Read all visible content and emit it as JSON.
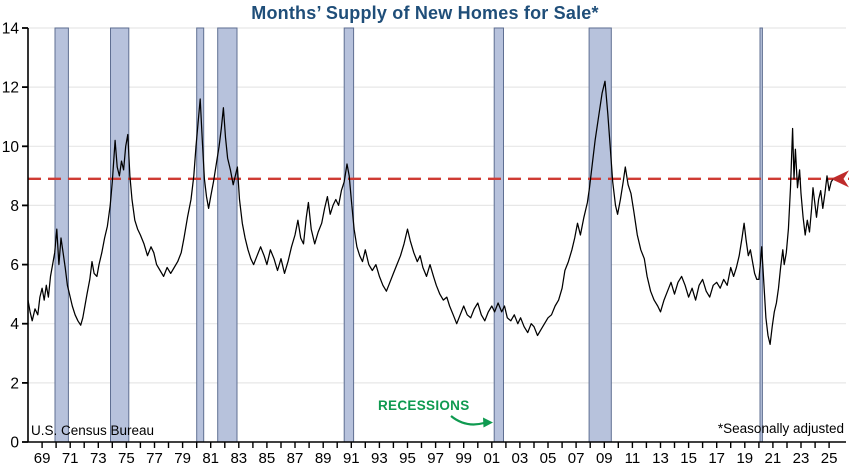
{
  "title": "Months’ Supply of New Homes for Sale*",
  "source_note": "U.S. Census Bureau",
  "footnote": "*Seasonally adjusted",
  "annotations": {
    "recessions_label": "RECESSIONS"
  },
  "colors": {
    "title": "#1F4E79",
    "line": "#000000",
    "grid": "#E7E7E7",
    "axis": "#000000",
    "tick_label": "#000000",
    "recession_fill": "#B7C2DC",
    "recession_border": "#5F6F92",
    "dashed_line": "#CF3B34",
    "arrow": "#BE2B2B",
    "recessions_label": "#0F9A50"
  },
  "chart_data": {
    "type": "line",
    "title": "Months’ Supply of New Homes for Sale*",
    "xlabel": "",
    "ylabel": "",
    "ylim": [
      0,
      14
    ],
    "yticks": [
      0,
      2,
      4,
      6,
      8,
      10,
      12,
      14
    ],
    "x_domain": [
      1968.0,
      2026.2
    ],
    "xtick_year_start": 1969,
    "xtick_year_end": 2025,
    "xtick_labels": [
      "69",
      "71",
      "73",
      "75",
      "77",
      "79",
      "81",
      "83",
      "85",
      "87",
      "89",
      "91",
      "93",
      "95",
      "97",
      "99",
      "01",
      "03",
      "05",
      "07",
      "09",
      "11",
      "13",
      "15",
      "17",
      "19",
      "21",
      "23",
      "25"
    ],
    "grid": "horizontal",
    "legend_position": "none",
    "reference_line": {
      "value": 8.9,
      "style": "dashed"
    },
    "recessions": [
      [
        1969.92,
        1970.87
      ],
      [
        1973.87,
        1975.17
      ],
      [
        1980.0,
        1980.5
      ],
      [
        1981.5,
        1982.87
      ],
      [
        1990.5,
        1991.17
      ],
      [
        2001.17,
        2001.83
      ],
      [
        2007.92,
        2009.5
      ],
      [
        2020.08,
        2020.25
      ]
    ],
    "series": [
      {
        "name": "Months' supply of new homes (months, seasonally adjusted)",
        "points": [
          [
            1968.0,
            4.8
          ],
          [
            1968.15,
            4.4
          ],
          [
            1968.3,
            4.1
          ],
          [
            1968.5,
            4.5
          ],
          [
            1968.7,
            4.3
          ],
          [
            1968.85,
            4.9
          ],
          [
            1969.0,
            5.2
          ],
          [
            1969.15,
            4.8
          ],
          [
            1969.3,
            5.3
          ],
          [
            1969.45,
            4.9
          ],
          [
            1969.6,
            5.6
          ],
          [
            1969.75,
            6.0
          ],
          [
            1969.9,
            6.4
          ],
          [
            1970.05,
            7.2
          ],
          [
            1970.2,
            6.0
          ],
          [
            1970.35,
            6.9
          ],
          [
            1970.5,
            6.4
          ],
          [
            1970.65,
            5.9
          ],
          [
            1970.8,
            5.3
          ],
          [
            1970.95,
            5.0
          ],
          [
            1971.15,
            4.6
          ],
          [
            1971.35,
            4.3
          ],
          [
            1971.55,
            4.1
          ],
          [
            1971.75,
            3.95
          ],
          [
            1971.9,
            4.2
          ],
          [
            1972.05,
            4.6
          ],
          [
            1972.2,
            5.0
          ],
          [
            1972.4,
            5.5
          ],
          [
            1972.55,
            6.1
          ],
          [
            1972.7,
            5.7
          ],
          [
            1972.9,
            5.6
          ],
          [
            1973.05,
            6.0
          ],
          [
            1973.25,
            6.4
          ],
          [
            1973.45,
            6.9
          ],
          [
            1973.65,
            7.3
          ],
          [
            1973.85,
            8.0
          ],
          [
            1974.0,
            8.8
          ],
          [
            1974.2,
            10.2
          ],
          [
            1974.35,
            9.3
          ],
          [
            1974.5,
            9.0
          ],
          [
            1974.65,
            9.5
          ],
          [
            1974.8,
            9.2
          ],
          [
            1974.95,
            10.0
          ],
          [
            1975.1,
            10.4
          ],
          [
            1975.25,
            9.0
          ],
          [
            1975.4,
            8.2
          ],
          [
            1975.6,
            7.5
          ],
          [
            1975.8,
            7.2
          ],
          [
            1976.0,
            7.0
          ],
          [
            1976.25,
            6.7
          ],
          [
            1976.5,
            6.3
          ],
          [
            1976.75,
            6.6
          ],
          [
            1976.95,
            6.4
          ],
          [
            1977.15,
            6.0
          ],
          [
            1977.4,
            5.8
          ],
          [
            1977.65,
            5.6
          ],
          [
            1977.9,
            5.9
          ],
          [
            1978.15,
            5.7
          ],
          [
            1978.4,
            5.9
          ],
          [
            1978.65,
            6.1
          ],
          [
            1978.9,
            6.4
          ],
          [
            1979.1,
            6.9
          ],
          [
            1979.35,
            7.6
          ],
          [
            1979.6,
            8.2
          ],
          [
            1979.8,
            9.0
          ],
          [
            1979.95,
            10.0
          ],
          [
            1980.1,
            10.8
          ],
          [
            1980.25,
            11.6
          ],
          [
            1980.4,
            10.2
          ],
          [
            1980.55,
            8.9
          ],
          [
            1980.7,
            8.3
          ],
          [
            1980.85,
            7.9
          ],
          [
            1981.0,
            8.3
          ],
          [
            1981.2,
            8.8
          ],
          [
            1981.4,
            9.4
          ],
          [
            1981.6,
            10.0
          ],
          [
            1981.75,
            10.6
          ],
          [
            1981.9,
            11.3
          ],
          [
            1982.05,
            10.3
          ],
          [
            1982.2,
            9.6
          ],
          [
            1982.4,
            9.2
          ],
          [
            1982.6,
            8.7
          ],
          [
            1982.75,
            9.0
          ],
          [
            1982.9,
            9.3
          ],
          [
            1983.05,
            8.2
          ],
          [
            1983.25,
            7.4
          ],
          [
            1983.45,
            6.9
          ],
          [
            1983.65,
            6.5
          ],
          [
            1983.85,
            6.2
          ],
          [
            1984.05,
            6.0
          ],
          [
            1984.3,
            6.3
          ],
          [
            1984.55,
            6.6
          ],
          [
            1984.8,
            6.3
          ],
          [
            1985.0,
            6.0
          ],
          [
            1985.25,
            6.5
          ],
          [
            1985.5,
            6.2
          ],
          [
            1985.75,
            5.8
          ],
          [
            1986.0,
            6.2
          ],
          [
            1986.25,
            5.7
          ],
          [
            1986.5,
            6.1
          ],
          [
            1986.75,
            6.6
          ],
          [
            1987.0,
            7.0
          ],
          [
            1987.2,
            7.5
          ],
          [
            1987.4,
            6.9
          ],
          [
            1987.6,
            6.7
          ],
          [
            1987.8,
            7.6
          ],
          [
            1987.95,
            8.1
          ],
          [
            1988.15,
            7.2
          ],
          [
            1988.4,
            6.7
          ],
          [
            1988.65,
            7.1
          ],
          [
            1988.9,
            7.4
          ],
          [
            1989.1,
            7.9
          ],
          [
            1989.3,
            8.3
          ],
          [
            1989.5,
            7.7
          ],
          [
            1989.7,
            8.0
          ],
          [
            1989.9,
            8.2
          ],
          [
            1990.1,
            8.0
          ],
          [
            1990.3,
            8.5
          ],
          [
            1990.5,
            8.8
          ],
          [
            1990.7,
            9.4
          ],
          [
            1990.85,
            9.0
          ],
          [
            1991.0,
            8.2
          ],
          [
            1991.2,
            7.2
          ],
          [
            1991.4,
            6.6
          ],
          [
            1991.6,
            6.3
          ],
          [
            1991.8,
            6.1
          ],
          [
            1992.0,
            6.5
          ],
          [
            1992.25,
            6.0
          ],
          [
            1992.5,
            5.8
          ],
          [
            1992.75,
            6.0
          ],
          [
            1993.0,
            5.6
          ],
          [
            1993.25,
            5.3
          ],
          [
            1993.5,
            5.1
          ],
          [
            1993.75,
            5.4
          ],
          [
            1994.0,
            5.7
          ],
          [
            1994.25,
            6.0
          ],
          [
            1994.5,
            6.3
          ],
          [
            1994.75,
            6.7
          ],
          [
            1995.0,
            7.2
          ],
          [
            1995.2,
            6.8
          ],
          [
            1995.45,
            6.4
          ],
          [
            1995.7,
            6.1
          ],
          [
            1995.9,
            6.3
          ],
          [
            1996.1,
            5.9
          ],
          [
            1996.35,
            5.6
          ],
          [
            1996.6,
            6.0
          ],
          [
            1996.85,
            5.6
          ],
          [
            1997.05,
            5.3
          ],
          [
            1997.3,
            5.0
          ],
          [
            1997.55,
            4.8
          ],
          [
            1997.8,
            4.9
          ],
          [
            1998.0,
            4.6
          ],
          [
            1998.25,
            4.3
          ],
          [
            1998.5,
            4.0
          ],
          [
            1998.75,
            4.3
          ],
          [
            1999.0,
            4.6
          ],
          [
            1999.25,
            4.3
          ],
          [
            1999.5,
            4.2
          ],
          [
            1999.75,
            4.5
          ],
          [
            2000.0,
            4.7
          ],
          [
            2000.25,
            4.3
          ],
          [
            2000.5,
            4.1
          ],
          [
            2000.75,
            4.4
          ],
          [
            2001.0,
            4.6
          ],
          [
            2001.2,
            4.4
          ],
          [
            2001.45,
            4.7
          ],
          [
            2001.7,
            4.4
          ],
          [
            2001.9,
            4.6
          ],
          [
            2002.1,
            4.2
          ],
          [
            2002.35,
            4.1
          ],
          [
            2002.6,
            4.3
          ],
          [
            2002.85,
            4.0
          ],
          [
            2003.05,
            4.2
          ],
          [
            2003.3,
            3.9
          ],
          [
            2003.55,
            3.7
          ],
          [
            2003.8,
            4.0
          ],
          [
            2004.0,
            3.9
          ],
          [
            2004.25,
            3.6
          ],
          [
            2004.5,
            3.8
          ],
          [
            2004.75,
            4.0
          ],
          [
            2005.0,
            4.2
          ],
          [
            2005.25,
            4.3
          ],
          [
            2005.5,
            4.6
          ],
          [
            2005.75,
            4.8
          ],
          [
            2006.0,
            5.2
          ],
          [
            2006.2,
            5.8
          ],
          [
            2006.45,
            6.1
          ],
          [
            2006.7,
            6.5
          ],
          [
            2006.9,
            6.9
          ],
          [
            2007.1,
            7.4
          ],
          [
            2007.3,
            7.0
          ],
          [
            2007.55,
            7.6
          ],
          [
            2007.8,
            8.1
          ],
          [
            2007.95,
            8.6
          ],
          [
            2008.15,
            9.4
          ],
          [
            2008.35,
            10.2
          ],
          [
            2008.6,
            11.0
          ],
          [
            2008.85,
            11.8
          ],
          [
            2009.05,
            12.2
          ],
          [
            2009.25,
            11.1
          ],
          [
            2009.45,
            9.8
          ],
          [
            2009.6,
            8.8
          ],
          [
            2009.8,
            8.0
          ],
          [
            2009.95,
            7.7
          ],
          [
            2010.15,
            8.2
          ],
          [
            2010.35,
            8.8
          ],
          [
            2010.5,
            9.3
          ],
          [
            2010.7,
            8.7
          ],
          [
            2010.9,
            8.4
          ],
          [
            2011.1,
            7.8
          ],
          [
            2011.35,
            7.0
          ],
          [
            2011.6,
            6.5
          ],
          [
            2011.85,
            6.2
          ],
          [
            2012.05,
            5.6
          ],
          [
            2012.3,
            5.1
          ],
          [
            2012.55,
            4.8
          ],
          [
            2012.8,
            4.6
          ],
          [
            2013.0,
            4.4
          ],
          [
            2013.25,
            4.8
          ],
          [
            2013.5,
            5.1
          ],
          [
            2013.75,
            5.4
          ],
          [
            2014.0,
            5.0
          ],
          [
            2014.25,
            5.4
          ],
          [
            2014.5,
            5.6
          ],
          [
            2014.75,
            5.3
          ],
          [
            2015.0,
            4.9
          ],
          [
            2015.25,
            5.2
          ],
          [
            2015.5,
            4.8
          ],
          [
            2015.75,
            5.3
          ],
          [
            2016.0,
            5.5
          ],
          [
            2016.25,
            5.1
          ],
          [
            2016.5,
            4.9
          ],
          [
            2016.75,
            5.3
          ],
          [
            2017.0,
            5.4
          ],
          [
            2017.25,
            5.2
          ],
          [
            2017.5,
            5.5
          ],
          [
            2017.75,
            5.3
          ],
          [
            2018.0,
            5.9
          ],
          [
            2018.2,
            5.6
          ],
          [
            2018.4,
            5.9
          ],
          [
            2018.6,
            6.3
          ],
          [
            2018.8,
            6.9
          ],
          [
            2018.95,
            7.4
          ],
          [
            2019.1,
            6.8
          ],
          [
            2019.25,
            6.3
          ],
          [
            2019.4,
            6.5
          ],
          [
            2019.55,
            6.1
          ],
          [
            2019.7,
            5.7
          ],
          [
            2019.85,
            5.5
          ],
          [
            2020.0,
            5.5
          ],
          [
            2020.1,
            6.0
          ],
          [
            2020.2,
            6.6
          ],
          [
            2020.35,
            5.4
          ],
          [
            2020.5,
            4.2
          ],
          [
            2020.65,
            3.6
          ],
          [
            2020.8,
            3.3
          ],
          [
            2020.95,
            3.9
          ],
          [
            2021.1,
            4.4
          ],
          [
            2021.25,
            4.7
          ],
          [
            2021.4,
            5.2
          ],
          [
            2021.55,
            5.9
          ],
          [
            2021.7,
            6.5
          ],
          [
            2021.8,
            6.0
          ],
          [
            2021.95,
            6.4
          ],
          [
            2022.1,
            7.2
          ],
          [
            2022.25,
            8.6
          ],
          [
            2022.4,
            10.6
          ],
          [
            2022.5,
            8.9
          ],
          [
            2022.6,
            9.9
          ],
          [
            2022.75,
            8.6
          ],
          [
            2022.9,
            9.2
          ],
          [
            2023.0,
            8.4
          ],
          [
            2023.15,
            7.6
          ],
          [
            2023.3,
            7.0
          ],
          [
            2023.45,
            7.5
          ],
          [
            2023.6,
            7.1
          ],
          [
            2023.75,
            7.9
          ],
          [
            2023.85,
            8.6
          ],
          [
            2024.0,
            8.0
          ],
          [
            2024.1,
            7.6
          ],
          [
            2024.25,
            8.2
          ],
          [
            2024.4,
            8.5
          ],
          [
            2024.55,
            7.9
          ],
          [
            2024.7,
            8.4
          ],
          [
            2024.85,
            9.0
          ],
          [
            2025.0,
            8.5
          ],
          [
            2025.15,
            8.8
          ],
          [
            2025.3,
            8.9
          ]
        ]
      }
    ]
  }
}
